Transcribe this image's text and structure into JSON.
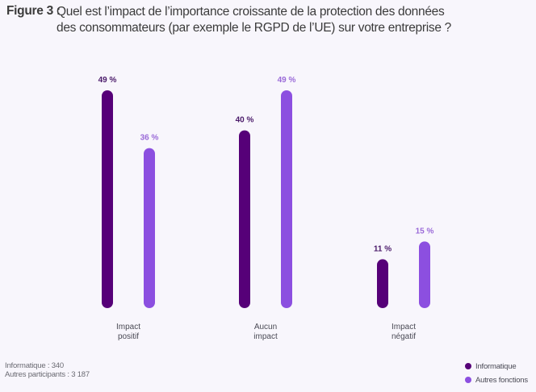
{
  "figure": {
    "label": "Figure 3 :",
    "title": "Quel est l’impact de l’importance croissante de la protection des données des consommateurs (par exemple le RGPD de l’UE) sur votre entreprise ?"
  },
  "footer": {
    "lines": [
      "Informatique : 340",
      "Autres participants : 3 187"
    ]
  },
  "colors": {
    "informatique": "#560078",
    "autres": "#8c4fe0"
  },
  "chart_data": {
    "type": "bar",
    "title": "Quel est l’impact de l’importance croissante de la protection des données des consommateurs (par exemple le RGPD de l’UE) sur votre entreprise ?",
    "xlabel": "",
    "ylabel": "",
    "ylim": [
      0,
      49
    ],
    "grid": false,
    "legend_position": "bottom-right",
    "categories": [
      [
        "Impact",
        "positif"
      ],
      [
        "Aucun",
        "impact"
      ],
      [
        "Impact",
        "négatif"
      ]
    ],
    "series": [
      {
        "name": "Informatique",
        "color": "#560078",
        "values": [
          49,
          40,
          11
        ],
        "labels": [
          "49 %",
          "40 %",
          "11 %"
        ]
      },
      {
        "name": "Autres fonctions",
        "color": "#8c4fe0",
        "values": [
          36,
          49,
          15
        ],
        "labels": [
          "36 %",
          "49 %",
          "15 %"
        ]
      }
    ]
  }
}
